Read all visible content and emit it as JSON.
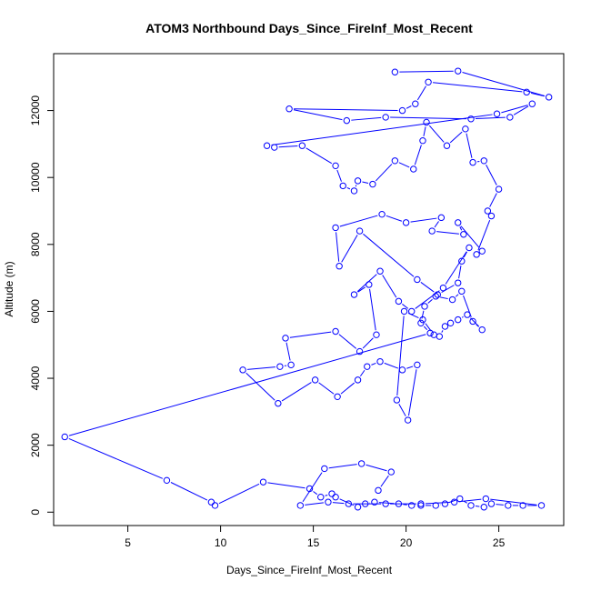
{
  "chart_data": {
    "type": "line",
    "title": "ATOM3 Northbound Days_Since_FireInf_Most_Recent",
    "xlabel": "Days_Since_FireInf_Most_Recent",
    "ylabel": "Altitude (m)",
    "xlim": [
      1.0,
      28.5
    ],
    "ylim": [
      -400,
      13700
    ],
    "xticks": [
      5,
      10,
      15,
      20,
      25
    ],
    "yticks": [
      0,
      2000,
      4000,
      6000,
      8000,
      10000,
      12000
    ],
    "series_color": "#0000ff",
    "marker": "open-circle",
    "grid": false,
    "legend": "none",
    "series": [
      {
        "values": [
          [
            19.4,
            13150
          ],
          [
            22.8,
            13180
          ],
          [
            27.7,
            12400
          ],
          [
            26.5,
            12550
          ],
          [
            21.2,
            12850
          ],
          [
            20.5,
            12200
          ],
          [
            19.8,
            12000
          ],
          [
            13.7,
            12050
          ],
          [
            16.8,
            11700
          ],
          [
            18.9,
            11800
          ],
          [
            23.5,
            11750
          ],
          [
            25.6,
            11800
          ],
          [
            26.8,
            12200
          ],
          [
            24.9,
            11900
          ],
          [
            12.5,
            10950
          ],
          [
            12.9,
            10900
          ],
          [
            14.4,
            10950
          ],
          [
            16.2,
            10350
          ],
          [
            16.6,
            9750
          ],
          [
            17.2,
            9600
          ],
          [
            17.4,
            9900
          ],
          [
            18.2,
            9800
          ],
          [
            19.4,
            10500
          ],
          [
            20.4,
            10250
          ],
          [
            20.9,
            11100
          ],
          [
            21.1,
            11650
          ],
          [
            22.2,
            10950
          ],
          [
            23.2,
            11450
          ],
          [
            23.6,
            10450
          ],
          [
            24.2,
            10500
          ],
          [
            25.0,
            9650
          ],
          [
            24.4,
            9000
          ],
          [
            24.6,
            8850
          ],
          [
            23.8,
            7700
          ],
          [
            24.1,
            7800
          ],
          [
            22.8,
            8650
          ],
          [
            23.1,
            8300
          ],
          [
            21.4,
            8400
          ],
          [
            21.9,
            8800
          ],
          [
            20.0,
            8650
          ],
          [
            18.7,
            8900
          ],
          [
            16.2,
            8500
          ],
          [
            16.4,
            7350
          ],
          [
            17.5,
            8400
          ],
          [
            20.6,
            6950
          ],
          [
            21.7,
            6500
          ],
          [
            22.8,
            6850
          ],
          [
            23.0,
            7500
          ],
          [
            23.4,
            7900
          ],
          [
            22.0,
            6700
          ],
          [
            20.3,
            6000
          ],
          [
            19.6,
            6300
          ],
          [
            18.6,
            7200
          ],
          [
            17.2,
            6500
          ],
          [
            18.0,
            6800
          ],
          [
            18.4,
            5300
          ],
          [
            17.5,
            4800
          ],
          [
            16.2,
            5400
          ],
          [
            13.5,
            5200
          ],
          [
            13.8,
            4400
          ],
          [
            13.2,
            4350
          ],
          [
            11.2,
            4250
          ],
          [
            13.1,
            3250
          ],
          [
            15.1,
            3950
          ],
          [
            16.3,
            3450
          ],
          [
            17.4,
            3950
          ],
          [
            17.9,
            4350
          ],
          [
            18.6,
            4500
          ],
          [
            19.8,
            4250
          ],
          [
            20.6,
            4400
          ],
          [
            20.1,
            2750
          ],
          [
            19.5,
            3350
          ],
          [
            19.9,
            6000
          ],
          [
            20.9,
            5750
          ],
          [
            21.5,
            5300
          ],
          [
            21.8,
            5250
          ],
          [
            22.1,
            5550
          ],
          [
            22.4,
            5650
          ],
          [
            22.8,
            5750
          ],
          [
            23.3,
            5900
          ],
          [
            24.1,
            5450
          ],
          [
            23.6,
            5700
          ],
          [
            23.0,
            6600
          ],
          [
            22.5,
            6350
          ],
          [
            21.6,
            6450
          ],
          [
            21.0,
            6150
          ],
          [
            20.8,
            5650
          ],
          [
            21.3,
            5350
          ],
          [
            1.6,
            2250
          ],
          [
            7.1,
            950
          ],
          [
            9.5,
            300
          ],
          [
            9.7,
            200
          ],
          [
            12.3,
            900
          ],
          [
            14.8,
            700
          ],
          [
            15.4,
            450
          ],
          [
            16.0,
            550
          ],
          [
            16.2,
            450
          ],
          [
            17.4,
            150
          ],
          [
            17.8,
            250
          ],
          [
            18.3,
            300
          ],
          [
            19.6,
            250
          ],
          [
            20.3,
            200
          ],
          [
            20.8,
            200
          ],
          [
            21.6,
            200
          ],
          [
            22.1,
            250
          ],
          [
            22.9,
            400
          ],
          [
            23.5,
            200
          ],
          [
            24.2,
            150
          ],
          [
            24.6,
            250
          ],
          [
            25.5,
            200
          ],
          [
            26.3,
            200
          ],
          [
            27.3,
            200
          ],
          [
            24.3,
            400
          ],
          [
            22.6,
            300
          ],
          [
            20.8,
            250
          ],
          [
            18.9,
            250
          ],
          [
            16.9,
            250
          ],
          [
            15.8,
            300
          ],
          [
            14.3,
            200
          ],
          [
            15.6,
            1300
          ],
          [
            17.6,
            1450
          ],
          [
            19.2,
            1200
          ],
          [
            18.5,
            650
          ]
        ]
      }
    ]
  }
}
